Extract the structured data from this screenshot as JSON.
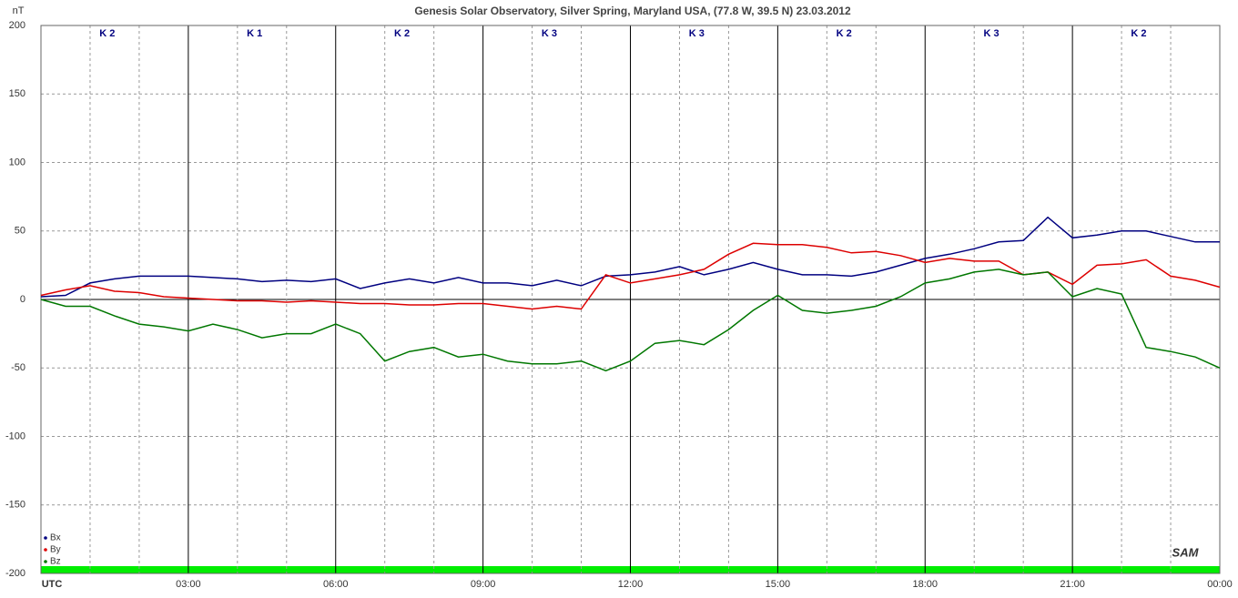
{
  "chart_data": {
    "type": "line",
    "title": "Genesis Solar Observatory, Silver Spring, Maryland USA, (77.8 W, 39.5 N)  23.03.2012",
    "y_label": "nT",
    "logo": "SAM",
    "k_labels": [
      "K 2",
      "K 1",
      "K 2",
      "K 3",
      "K 3",
      "K 2",
      "K 3",
      "K 2"
    ],
    "xlim": [
      0,
      24
    ],
    "xticks": [
      {
        "value": 0,
        "label": "UTC"
      },
      {
        "value": 3,
        "label": "03:00"
      },
      {
        "value": 6,
        "label": "06:00"
      },
      {
        "value": 9,
        "label": "09:00"
      },
      {
        "value": 12,
        "label": "12:00"
      },
      {
        "value": 15,
        "label": "15:00"
      },
      {
        "value": 18,
        "label": "18:00"
      },
      {
        "value": 21,
        "label": "21:00"
      },
      {
        "value": 24,
        "label": "00:00"
      }
    ],
    "ylim": [
      -200,
      200
    ],
    "yticks": [
      -200,
      -150,
      -100,
      -50,
      0,
      50,
      100,
      150,
      200
    ],
    "grid": true,
    "legend": "bottom-left",
    "x": [
      0,
      0.5,
      1,
      1.5,
      2,
      2.5,
      3,
      3.5,
      4,
      4.5,
      5,
      5.5,
      6,
      6.5,
      7,
      7.5,
      8,
      8.5,
      9,
      9.5,
      10,
      10.5,
      11,
      11.5,
      12,
      12.5,
      13,
      13.5,
      14,
      14.5,
      15,
      15.5,
      16,
      16.5,
      17,
      17.5,
      18,
      18.5,
      19,
      19.5,
      20,
      20.5,
      21,
      21.5,
      22,
      22.5,
      23,
      23.5,
      24
    ],
    "series": [
      {
        "name": "Bx",
        "color": "#000080",
        "values": [
          2,
          3,
          12,
          15,
          17,
          17,
          17,
          16,
          15,
          13,
          14,
          13,
          15,
          8,
          12,
          15,
          12,
          16,
          12,
          12,
          10,
          14,
          10,
          17,
          18,
          20,
          24,
          18,
          22,
          27,
          22,
          18,
          18,
          17,
          20,
          25,
          30,
          33,
          37,
          42,
          43,
          60,
          45,
          47,
          50,
          50,
          46,
          42,
          42
        ]
      },
      {
        "name": "By",
        "color": "#dd0000",
        "values": [
          3,
          7,
          10,
          6,
          5,
          2,
          1,
          0,
          -1,
          -1,
          -2,
          -1,
          -2,
          -3,
          -3,
          -4,
          -4,
          -3,
          -3,
          -5,
          -7,
          -5,
          -7,
          18,
          12,
          15,
          18,
          22,
          33,
          41,
          40,
          40,
          38,
          34,
          35,
          32,
          27,
          30,
          28,
          28,
          18,
          20,
          11,
          25,
          26,
          29,
          17,
          14,
          9
        ]
      },
      {
        "name": "Bz",
        "color": "#007700",
        "values": [
          0,
          -5,
          -5,
          -12,
          -18,
          -20,
          -23,
          -18,
          -22,
          -28,
          -25,
          -25,
          -18,
          -25,
          -45,
          -38,
          -35,
          -42,
          -40,
          -45,
          -47,
          -47,
          -45,
          -52,
          -45,
          -32,
          -30,
          -33,
          -22,
          -8,
          3,
          -8,
          -10,
          -8,
          -5,
          2,
          12,
          15,
          20,
          22,
          18,
          20,
          2,
          8,
          4,
          -35,
          -38,
          -42,
          -50
        ]
      }
    ]
  }
}
